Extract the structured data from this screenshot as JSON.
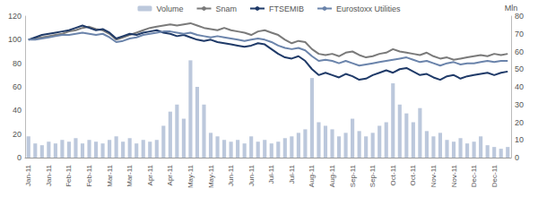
{
  "chart_data": {
    "type": "line",
    "legend": "top",
    "grid": false,
    "y2_label": "Mln",
    "ylim": [
      0,
      120
    ],
    "yticks": [
      0,
      20,
      40,
      60,
      80,
      100,
      120
    ],
    "y2lim": [
      0,
      80
    ],
    "y2ticks": [
      0,
      10,
      20,
      30,
      40,
      50,
      60,
      70,
      80
    ],
    "categories": [
      "Jan-11",
      null,
      null,
      "Jan-11",
      null,
      null,
      "Feb-11",
      null,
      null,
      "Feb-11",
      null,
      null,
      "Mar-11",
      null,
      null,
      "Mar-11",
      null,
      null,
      "Apr-11",
      null,
      null,
      "Apr-11",
      null,
      null,
      "May-11",
      null,
      null,
      "May-11",
      null,
      null,
      "Jun-11",
      null,
      null,
      "Jun-11",
      null,
      null,
      "Jul-11",
      null,
      null,
      "Jul-11",
      null,
      null,
      "Aug-11",
      null,
      null,
      "Aug-11",
      null,
      null,
      "Sep-11",
      null,
      null,
      "Sep-11",
      null,
      null,
      "Oct-11",
      null,
      null,
      "Oct-11",
      null,
      null,
      "Nov-11",
      null,
      null,
      "Nov-11",
      null,
      null,
      "Dec-11",
      null,
      null,
      "Dec-11",
      null,
      null
    ],
    "series": [
      {
        "name": "Volume",
        "type": "bar",
        "axis": "y2",
        "color": "#bcc8dc",
        "values": [
          12,
          8,
          7,
          9,
          8,
          10,
          9,
          11,
          8,
          10,
          9,
          8,
          10,
          12,
          9,
          11,
          8,
          10,
          9,
          10,
          18,
          26,
          30,
          22,
          55,
          40,
          30,
          14,
          12,
          10,
          9,
          10,
          8,
          12,
          9,
          10,
          8,
          9,
          11,
          12,
          14,
          16,
          45,
          20,
          18,
          16,
          12,
          14,
          22,
          15,
          12,
          14,
          18,
          20,
          42,
          30,
          25,
          20,
          28,
          15,
          12,
          14,
          10,
          9,
          11,
          8,
          9,
          12,
          7,
          6,
          5,
          6
        ]
      },
      {
        "name": "Snam",
        "type": "line",
        "color": "#7a7a7a",
        "values": [
          100,
          101,
          102,
          103,
          104,
          105,
          107,
          108,
          110,
          111,
          109,
          108,
          105,
          100,
          102,
          104,
          106,
          108,
          110,
          111,
          112,
          113,
          112,
          113,
          114,
          112,
          110,
          109,
          108,
          110,
          108,
          107,
          106,
          104,
          107,
          108,
          106,
          104,
          100,
          97,
          99,
          98,
          92,
          88,
          87,
          88,
          86,
          89,
          90,
          87,
          85,
          86,
          88,
          89,
          92,
          90,
          89,
          88,
          87,
          89,
          86,
          84,
          85,
          83,
          84,
          85,
          86,
          87,
          86,
          88,
          87,
          88
        ]
      },
      {
        "name": "FTSEMIB",
        "type": "line",
        "color": "#1f3a68",
        "values": [
          100,
          102,
          104,
          105,
          106,
          107,
          108,
          110,
          112,
          110,
          108,
          109,
          106,
          101,
          103,
          105,
          104,
          106,
          107,
          108,
          106,
          105,
          103,
          104,
          102,
          100,
          99,
          100,
          98,
          97,
          96,
          95,
          94,
          95,
          97,
          96,
          92,
          88,
          85,
          84,
          86,
          82,
          75,
          70,
          72,
          70,
          68,
          71,
          69,
          66,
          67,
          70,
          72,
          74,
          72,
          75,
          76,
          73,
          70,
          71,
          68,
          66,
          69,
          70,
          67,
          69,
          70,
          71,
          72,
          70,
          72,
          73
        ]
      },
      {
        "name": "Eurostoxx Utilities",
        "type": "line",
        "color": "#6b84ab",
        "values": [
          100,
          100,
          101,
          102,
          103,
          104,
          104,
          105,
          106,
          105,
          104,
          105,
          102,
          98,
          99,
          101,
          102,
          104,
          105,
          106,
          107,
          107,
          106,
          105,
          106,
          104,
          103,
          102,
          103,
          102,
          101,
          100,
          99,
          100,
          101,
          100,
          98,
          95,
          93,
          92,
          93,
          91,
          86,
          82,
          83,
          82,
          80,
          82,
          80,
          78,
          79,
          80,
          81,
          82,
          83,
          84,
          85,
          83,
          81,
          82,
          80,
          78,
          80,
          81,
          79,
          80,
          80,
          81,
          82,
          81,
          82,
          82
        ]
      }
    ]
  }
}
